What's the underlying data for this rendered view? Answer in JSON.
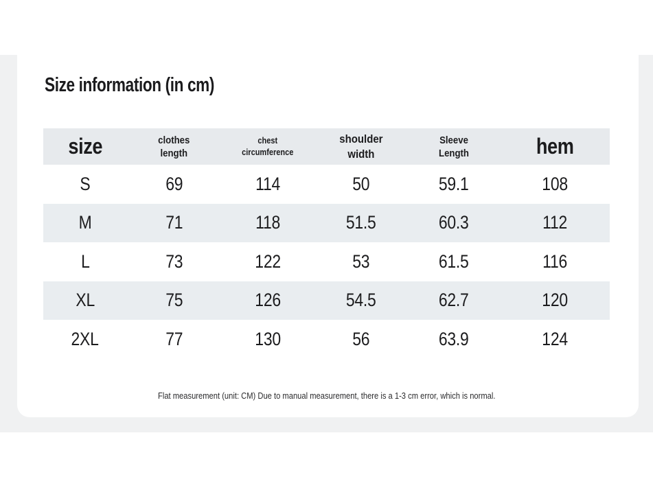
{
  "page": {
    "title": "Size information (in cm)",
    "footnote": "Flat measurement (unit: CM) Due to manual measurement, there is a 1-3 cm error, which is normal."
  },
  "colors": {
    "section_band": "#f0f1f2",
    "card": "#ffffff",
    "header_row_bg": "#e7eaed",
    "stripe_row_bg": "#e9edf0",
    "text": "#1c1c1e"
  },
  "table": {
    "header": {
      "size": "size",
      "clothes_length": [
        "clothes",
        "length"
      ],
      "chest_circumference": [
        "chest",
        "circumference"
      ],
      "shoulder_width": [
        "shoulder",
        "width"
      ],
      "sleeve_length": [
        "Sleeve",
        "Length"
      ],
      "hem": "hem"
    },
    "rows": [
      {
        "size": "S",
        "clothes_length": "69",
        "chest_circumference": "114",
        "shoulder_width": "50",
        "sleeve_length": "59.1",
        "hem": "108"
      },
      {
        "size": "M",
        "clothes_length": "71",
        "chest_circumference": "118",
        "shoulder_width": "51.5",
        "sleeve_length": "60.3",
        "hem": "112"
      },
      {
        "size": "L",
        "clothes_length": "73",
        "chest_circumference": "122",
        "shoulder_width": "53",
        "sleeve_length": "61.5",
        "hem": "116"
      },
      {
        "size": "XL",
        "clothes_length": "75",
        "chest_circumference": "126",
        "shoulder_width": "54.5",
        "sleeve_length": "62.7",
        "hem": "120"
      },
      {
        "size": "2XL",
        "clothes_length": "77",
        "chest_circumference": "130",
        "shoulder_width": "56",
        "sleeve_length": "63.9",
        "hem": "124"
      }
    ]
  }
}
